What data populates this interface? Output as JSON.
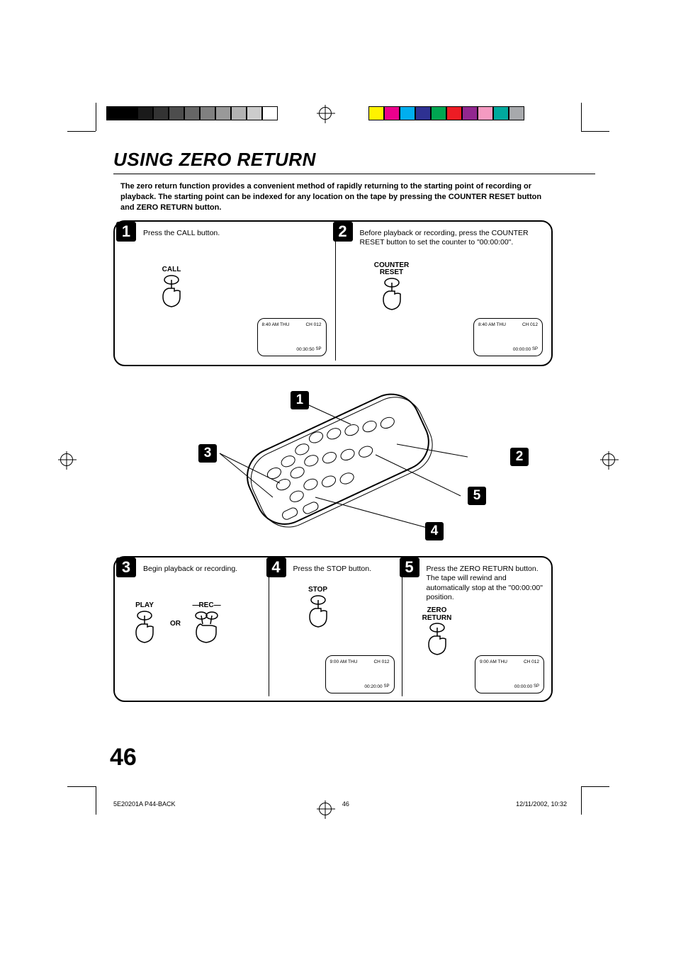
{
  "title": "USING ZERO RETURN",
  "intro": "The zero return function provides a convenient method of rapidly returning to the starting point of recording or playback. The starting point can be indexed for any location on the tape by pressing the COUNTER RESET button and ZERO RETURN button.",
  "steps": {
    "s1": {
      "num": "1",
      "text": "Press the CALL button.",
      "button_label": "CALL",
      "osd": {
        "time": "8:40 AM  THU",
        "ch": "CH 012",
        "counter": "00:30:50",
        "mode": "SP",
        "rec": "■"
      }
    },
    "s2": {
      "num": "2",
      "text": "Before playback or recording, press the COUNTER RESET button to set the counter to \"00:00:00\".",
      "button_label": "COUNTER\nRESET",
      "osd": {
        "time": "8:40 AM  THU",
        "ch": "CH 012",
        "counter": "00:00:00",
        "mode": "SP",
        "rec": "■"
      }
    },
    "s3": {
      "num": "3",
      "text": "Begin playback or recording.",
      "play_label": "PLAY",
      "or_label": "OR",
      "rec_label": "REC"
    },
    "s4": {
      "num": "4",
      "text": "Press the STOP button.",
      "button_label": "STOP",
      "osd": {
        "time": "9:00 AM  THU",
        "ch": "CH 012",
        "counter": "00:20:00",
        "mode": "SP",
        "rec": "■"
      }
    },
    "s5": {
      "num": "5",
      "text": "Press the ZERO RETURN button. The tape will rewind and automatically stop at the \"00:00:00\" position.",
      "button_label": "ZERO\nRETURN",
      "osd": {
        "time": "9:00 AM  THU",
        "ch": "CH 012",
        "counter": "00:00:00",
        "mode": "SP",
        "rec": "■"
      }
    }
  },
  "remote_callouts": {
    "c1": "1",
    "c2": "2",
    "c3": "3",
    "c4": "4",
    "c5": "5"
  },
  "page_number": "46",
  "footer": {
    "file": "5E20201A P44-BACK",
    "page": "46",
    "date": "12/11/2002, 10:32"
  },
  "colorbars": {
    "left": [
      "#000000",
      "#000000",
      "#1a1a1a",
      "#333333",
      "#4d4d4d",
      "#666666",
      "#808080",
      "#999999",
      "#b3b3b3",
      "#cccccc",
      "#ffffff"
    ],
    "right": [
      "#fff200",
      "#ec008c",
      "#00aeef",
      "#2e3192",
      "#00a651",
      "#ed1c24",
      "#92278f",
      "#f49ac1",
      "#00a99d",
      "#a7a9ac"
    ]
  }
}
